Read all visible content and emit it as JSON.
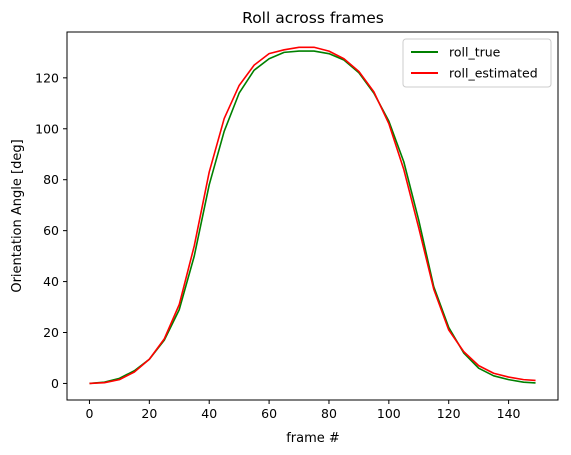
{
  "chart_data": {
    "type": "line",
    "title": "Roll across frames",
    "xlabel": "frame #",
    "ylabel": "Orientation Angle [deg]",
    "xlim": [
      -7.5,
      156.5
    ],
    "ylim": [
      -6.5,
      138
    ],
    "xticks": [
      0,
      20,
      40,
      60,
      80,
      100,
      120,
      140
    ],
    "yticks": [
      0,
      20,
      40,
      60,
      80,
      100,
      120
    ],
    "grid": false,
    "legend_position": "top-right",
    "series": [
      {
        "name": "roll_true",
        "color": "#008000",
        "x": [
          0,
          5,
          10,
          15,
          20,
          25,
          30,
          35,
          40,
          45,
          50,
          55,
          60,
          65,
          70,
          75,
          80,
          85,
          90,
          95,
          100,
          105,
          110,
          115,
          120,
          125,
          130,
          135,
          140,
          145,
          149
        ],
        "y": [
          0,
          0.5,
          2,
          5,
          9.5,
          17,
          29,
          50,
          78,
          99,
          114,
          123,
          127.5,
          130,
          130.5,
          130.5,
          129.5,
          127,
          122,
          114,
          103,
          87,
          64,
          38,
          22,
          12,
          6,
          3,
          1.5,
          0.5,
          0.2
        ]
      },
      {
        "name": "roll_estimated",
        "color": "#ff0000",
        "x": [
          0,
          5,
          10,
          15,
          20,
          25,
          30,
          35,
          40,
          45,
          50,
          55,
          60,
          65,
          70,
          75,
          80,
          85,
          90,
          95,
          100,
          105,
          110,
          115,
          120,
          125,
          130,
          135,
          140,
          145,
          149
        ],
        "y": [
          0,
          0.3,
          1.5,
          4.5,
          9.5,
          17.5,
          31,
          54,
          83,
          104,
          117,
          125,
          129.5,
          131,
          132,
          132,
          130.5,
          127.5,
          122.5,
          114.5,
          102,
          84,
          61,
          37,
          21,
          12.5,
          7,
          4,
          2.5,
          1.5,
          1.2
        ]
      }
    ]
  }
}
